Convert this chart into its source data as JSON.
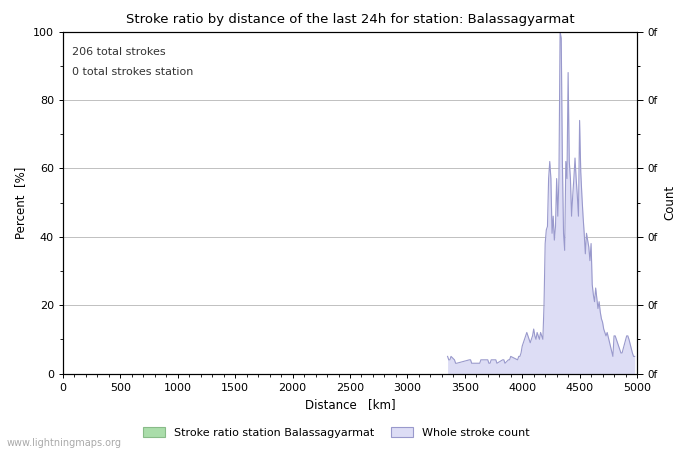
{
  "title": "Stroke ratio by distance of the last 24h for station: Balassagyarmat",
  "xlabel": "Distance   [km]",
  "ylabel_left": "Percent  [%]",
  "ylabel_right": "Count",
  "annotation_line1": "206 total strokes",
  "annotation_line2": "0 total strokes station",
  "xlim": [
    0,
    5000
  ],
  "ylim": [
    0,
    100
  ],
  "xticks": [
    0,
    500,
    1000,
    1500,
    2000,
    2500,
    3000,
    3500,
    4000,
    4500,
    5000
  ],
  "yticks_left": [
    0,
    20,
    40,
    60,
    80,
    100
  ],
  "legend_label_green": "Stroke ratio station Balassagyarmat",
  "legend_label_blue": "Whole stroke count",
  "watermark": "www.lightningmaps.org",
  "bg_color": "#ffffff",
  "grid_color": "#c0c0c0",
  "line_color": "#9999cc",
  "fill_color": "#ddddf5",
  "stroke_ratio_color": "#aaddaa",
  "distances": [
    3350,
    3360,
    3370,
    3380,
    3410,
    3420,
    3430,
    3540,
    3550,
    3560,
    3630,
    3640,
    3650,
    3700,
    3710,
    3720,
    3730,
    3760,
    3770,
    3780,
    3830,
    3840,
    3850,
    3880,
    3890,
    3900,
    3960,
    3970,
    3980,
    3990,
    4000,
    4010,
    4020,
    4030,
    4040,
    4050,
    4060,
    4070,
    4080,
    4090,
    4100,
    4110,
    4120,
    4130,
    4140,
    4150,
    4160,
    4170,
    4180,
    4190,
    4200,
    4210,
    4220,
    4230,
    4240,
    4250,
    4260,
    4270,
    4280,
    4290,
    4300,
    4310,
    4320,
    4330,
    4340,
    4350,
    4360,
    4370,
    4380,
    4390,
    4400,
    4410,
    4420,
    4430,
    4440,
    4450,
    4460,
    4470,
    4480,
    4490,
    4500,
    4510,
    4520,
    4530,
    4540,
    4550,
    4560,
    4570,
    4580,
    4590,
    4600,
    4610,
    4620,
    4630,
    4640,
    4650,
    4660,
    4670,
    4680,
    4690,
    4700,
    4710,
    4720,
    4730,
    4740,
    4790,
    4800,
    4810,
    4820,
    4850,
    4860,
    4870,
    4910,
    4920,
    4930,
    4960,
    4970,
    4980
  ],
  "values_raw": [
    5,
    4,
    4,
    5,
    4,
    3,
    3,
    4,
    4,
    3,
    3,
    4,
    4,
    4,
    3,
    3,
    4,
    4,
    4,
    3,
    4,
    4,
    3,
    4,
    4,
    5,
    4,
    5,
    5,
    6,
    8,
    9,
    10,
    11,
    12,
    11,
    10,
    9,
    10,
    11,
    13,
    11,
    10,
    12,
    11,
    10,
    12,
    11,
    10,
    20,
    38,
    42,
    43,
    57,
    62,
    57,
    41,
    46,
    39,
    43,
    57,
    46,
    57,
    100,
    98,
    62,
    41,
    36,
    62,
    57,
    88,
    62,
    57,
    46,
    52,
    57,
    63,
    57,
    52,
    46,
    74,
    59,
    52,
    46,
    41,
    35,
    41,
    39,
    37,
    33,
    38,
    26,
    23,
    21,
    25,
    22,
    19,
    21,
    18,
    16,
    15,
    13,
    12,
    11,
    12,
    5,
    11,
    11,
    10,
    7,
    6,
    6,
    11,
    11,
    10,
    6,
    5,
    5
  ]
}
